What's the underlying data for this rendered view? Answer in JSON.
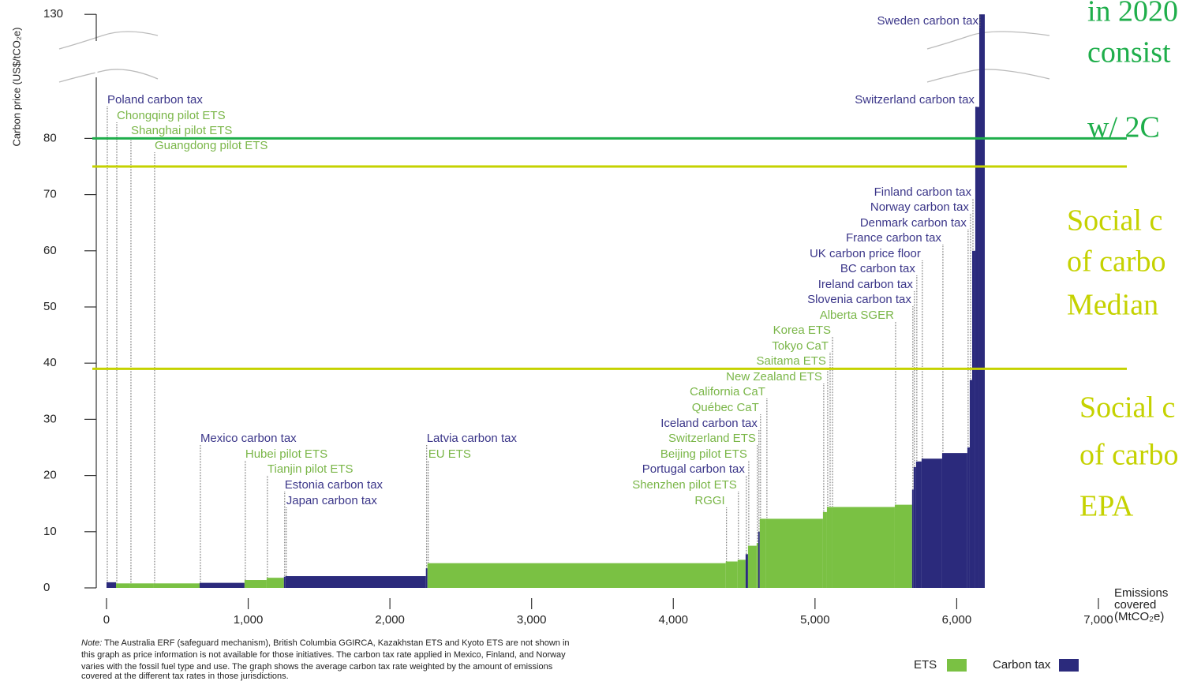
{
  "chart_data": {
    "type": "bar",
    "y_label": "Carbon price (US$/tCO₂e)",
    "x_label_lines": [
      "Emissions",
      "covered",
      "(MtCO₂e)"
    ],
    "xlim": [
      -70,
      7000
    ],
    "xticks": [
      0,
      {
        "value": 1000,
        "label": "1,000"
      },
      {
        "value": 2000,
        "label": "2,000"
      },
      {
        "value": 3000,
        "label": "3,000"
      },
      {
        "value": 4000,
        "label": "4,000"
      },
      {
        "value": 5000,
        "label": "5,000"
      },
      {
        "value": 6000,
        "label": "6,000"
      },
      {
        "value": 7000,
        "label": "7,000"
      }
    ],
    "ylim": [
      0,
      130
    ],
    "yticks": [
      0,
      10,
      20,
      30,
      40,
      50,
      60,
      70,
      80,
      130
    ],
    "y_break": [
      85,
      125
    ],
    "legend": [
      {
        "name": "ETS",
        "color": "#7ac143"
      },
      {
        "name": "Carbon tax",
        "color": "#2b2a7c"
      }
    ],
    "instruments": [
      {
        "name": "Poland carbon tax",
        "scheme": "Carbon tax",
        "emissions": 67,
        "price": 1
      },
      {
        "name": "Chongqing pilot ETS",
        "scheme": "ETS",
        "emissions": 100,
        "price": 0.8
      },
      {
        "name": "Shanghai pilot ETS",
        "scheme": "ETS",
        "emissions": 167,
        "price": 0.8
      },
      {
        "name": "Guangdong pilot ETS",
        "scheme": "ETS",
        "emissions": 323,
        "price": 0.8
      },
      {
        "name": "Mexico carbon tax",
        "scheme": "Carbon tax",
        "emissions": 317,
        "price": 0.9
      },
      {
        "name": "Hubei pilot ETS",
        "scheme": "ETS",
        "emissions": 156,
        "price": 1.4
      },
      {
        "name": "Tianjin pilot ETS",
        "scheme": "ETS",
        "emissions": 122,
        "price": 1.8
      },
      {
        "name": "Estonia carbon tax",
        "scheme": "Carbon tax",
        "emissions": 11,
        "price": 2
      },
      {
        "name": "Japan carbon tax",
        "scheme": "Carbon tax",
        "emissions": 991,
        "price": 2.1
      },
      {
        "name": "Latvia carbon tax",
        "scheme": "Carbon tax",
        "emissions": 11,
        "price": 3.5
      },
      {
        "name": "EU ETS",
        "scheme": "ETS",
        "emissions": 2105,
        "price": 4.4
      },
      {
        "name": "RGGI",
        "scheme": "ETS",
        "emissions": 84,
        "price": 4.7
      },
      {
        "name": "Shenzhen pilot ETS",
        "scheme": "ETS",
        "emissions": 56,
        "price": 5
      },
      {
        "name": "Portugal carbon tax",
        "scheme": "Carbon tax",
        "emissions": 17,
        "price": 6
      },
      {
        "name": "Beijing pilot ETS",
        "scheme": "ETS",
        "emissions": 61,
        "price": 7.5
      },
      {
        "name": "Switzerland ETS",
        "scheme": "ETS",
        "emissions": 11,
        "price": 8
      },
      {
        "name": "Iceland carbon tax",
        "scheme": "Carbon tax",
        "emissions": 11,
        "price": 10
      },
      {
        "name": "Québec CaT",
        "scheme": "ETS",
        "emissions": 45,
        "price": 12.3
      },
      {
        "name": "California CaT",
        "scheme": "ETS",
        "emissions": 401,
        "price": 12.3
      },
      {
        "name": "New Zealand ETS",
        "scheme": "ETS",
        "emissions": 28,
        "price": 13.5
      },
      {
        "name": "Saitama ETS",
        "scheme": "ETS",
        "emissions": 17,
        "price": 14.4
      },
      {
        "name": "Tokyo CaT",
        "scheme": "ETS",
        "emissions": 17,
        "price": 14.4
      },
      {
        "name": "Korea ETS",
        "scheme": "ETS",
        "emissions": 445,
        "price": 14.4
      },
      {
        "name": "Alberta SGER",
        "scheme": "ETS",
        "emissions": 122,
        "price": 14.8
      },
      {
        "name": "Slovenia carbon tax",
        "scheme": "Carbon tax",
        "emissions": 11,
        "price": 17.5
      },
      {
        "name": "Ireland carbon tax",
        "scheme": "Carbon tax",
        "emissions": 17,
        "price": 21.5
      },
      {
        "name": "BC carbon tax",
        "scheme": "Carbon tax",
        "emissions": 39,
        "price": 22.5
      },
      {
        "name": "UK carbon price floor",
        "scheme": "Carbon tax",
        "emissions": 145,
        "price": 23
      },
      {
        "name": "France carbon tax",
        "scheme": "Carbon tax",
        "emissions": 178,
        "price": 24
      },
      {
        "name": "Denmark carbon tax",
        "scheme": "Carbon tax",
        "emissions": 17,
        "price": 25
      },
      {
        "name": "Norway carbon tax",
        "scheme": "Carbon tax",
        "emissions": 17,
        "price": 37
      },
      {
        "name": "Finland carbon tax",
        "scheme": "Carbon tax",
        "emissions": 22,
        "price": 60
      },
      {
        "name": "Switzerland carbon tax",
        "scheme": "Carbon tax",
        "emissions": 28,
        "price": 87
      },
      {
        "name": "Sweden carbon tax",
        "scheme": "Carbon tax",
        "emissions": 39,
        "price": 130
      }
    ],
    "reference_lines": [
      {
        "value": 80,
        "color": "#1fae4b",
        "label_lines": [
          "in 2020",
          "consist",
          "w/ 2C"
        ]
      },
      {
        "value": 75,
        "color": "#c5d200",
        "label_lines": [
          "Social c",
          "of carbo",
          "Median"
        ]
      },
      {
        "value": 39,
        "color": "#c5d200",
        "label_lines": [
          "Social c",
          "of carbo",
          "EPA"
        ]
      }
    ],
    "note_label": "Note:",
    "note_lines": [
      " The Australia ERF (safeguard mechanism), British Columbia GGIRCA, Kazakhstan ETS and Kyoto ETS are not shown in",
      "this graph as price information is not available for those initiatives. The carbon tax rate applied in Mexico, Finland, and Norway",
      "varies with the fossil fuel type and use. The graph shows the average carbon tax rate weighted by the amount of emissions",
      "covered at the different tax rates in those jurisdictions."
    ]
  }
}
